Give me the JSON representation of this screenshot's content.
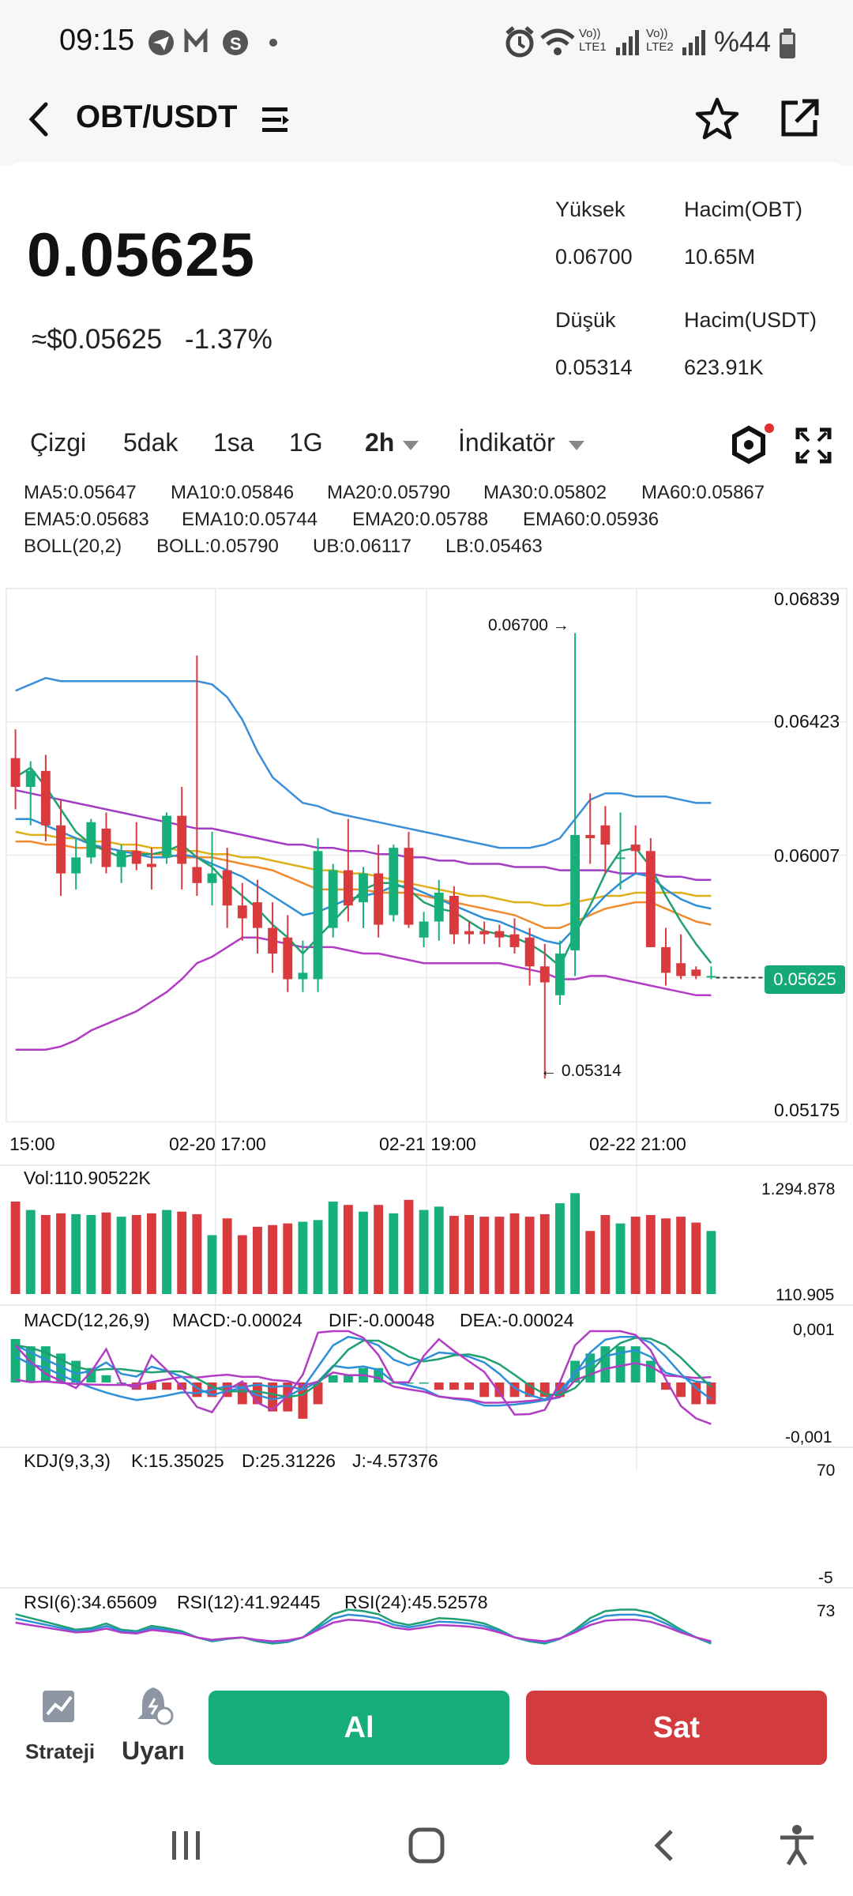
{
  "status": {
    "time": "09:15",
    "battery": "%44",
    "sim1": "LTE1",
    "sim2": "LTE2",
    "volte": "Vo))"
  },
  "header": {
    "pair": "OBT/USDT"
  },
  "ticker": {
    "price": "0.05625",
    "usd": "≈$0.05625",
    "change": "-1.37%",
    "high_label": "Yüksek",
    "high": "0.06700",
    "low_label": "Düşük",
    "low": "0.05314",
    "vol_base_label": "Hacim(OBT)",
    "vol_base": "10.65M",
    "vol_quote_label": "Hacim(USDT)",
    "vol_quote": "623.91K"
  },
  "tabs": {
    "line": "Çizgi",
    "m5": "5dak",
    "h1": "1sa",
    "d1": "1G",
    "h2": "2h",
    "indicator": "İndikatör"
  },
  "indicators": {
    "ma5": "MA5:0.05647",
    "ma10": "MA10:0.05846",
    "ma20": "MA20:0.05790",
    "ma30": "MA30:0.05802",
    "ma60": "MA60:0.05867",
    "ema5": "EMA5:0.05683",
    "ema10": "EMA10:0.05744",
    "ema20": "EMA20:0.05788",
    "ema60": "EMA60:0.05936",
    "boll": "BOLL(20,2)",
    "bollv": "BOLL:0.05790",
    "ub": "UB:0.06117",
    "lb": "LB:0.05463"
  },
  "chart": {
    "yticks": [
      "0.06839",
      "0.06423",
      "0.06007",
      "0.05625",
      "0.05175"
    ],
    "xticks": [
      "15:00",
      "02-20 17:00",
      "02-21 19:00",
      "02-22 21:00"
    ],
    "high_marker": "0.06700 →",
    "low_marker": "← 0.05314",
    "current": "0.05625"
  },
  "chart_data": {
    "type": "candlestick",
    "title": "OBT/USDT 2h",
    "ylim": [
      0.05175,
      0.06839
    ],
    "candles": [
      [
        0.0631,
        0.064,
        0.0615,
        0.0622
      ],
      [
        0.0622,
        0.063,
        0.061,
        0.0627
      ],
      [
        0.0627,
        0.0632,
        0.0605,
        0.061
      ],
      [
        0.061,
        0.0618,
        0.0588,
        0.0595
      ],
      [
        0.0595,
        0.0606,
        0.059,
        0.06
      ],
      [
        0.06,
        0.0612,
        0.0598,
        0.0611
      ],
      [
        0.0609,
        0.0614,
        0.0595,
        0.0597
      ],
      [
        0.0597,
        0.0604,
        0.0592,
        0.0602
      ],
      [
        0.0602,
        0.0611,
        0.0596,
        0.0598
      ],
      [
        0.0598,
        0.0603,
        0.059,
        0.0597
      ],
      [
        0.06,
        0.0614,
        0.0598,
        0.0613
      ],
      [
        0.0613,
        0.0622,
        0.059,
        0.0598
      ],
      [
        0.0597,
        0.0663,
        0.0588,
        0.0592
      ],
      [
        0.0592,
        0.0608,
        0.0585,
        0.0595
      ],
      [
        0.0596,
        0.0603,
        0.0578,
        0.0585
      ],
      [
        0.0585,
        0.0592,
        0.0574,
        0.0581
      ],
      [
        0.0586,
        0.0593,
        0.057,
        0.0578
      ],
      [
        0.0578,
        0.0586,
        0.0564,
        0.057
      ],
      [
        0.0575,
        0.0582,
        0.0558,
        0.0562
      ],
      [
        0.0562,
        0.0574,
        0.0558,
        0.0564
      ],
      [
        0.0562,
        0.0606,
        0.0558,
        0.0602
      ],
      [
        0.0578,
        0.0598,
        0.0575,
        0.0596
      ],
      [
        0.0596,
        0.0612,
        0.058,
        0.0585
      ],
      [
        0.0586,
        0.0597,
        0.0578,
        0.0595
      ],
      [
        0.0595,
        0.0604,
        0.0575,
        0.0579
      ],
      [
        0.0582,
        0.0604,
        0.058,
        0.0603
      ],
      [
        0.0603,
        0.0608,
        0.0578,
        0.0579
      ],
      [
        0.0575,
        0.0583,
        0.0572,
        0.058
      ],
      [
        0.058,
        0.0593,
        0.0574,
        0.0589
      ],
      [
        0.0588,
        0.0591,
        0.0573,
        0.0576
      ],
      [
        0.0577,
        0.058,
        0.0573,
        0.0576
      ],
      [
        0.0577,
        0.058,
        0.0573,
        0.0576
      ],
      [
        0.0577,
        0.0579,
        0.0572,
        0.0575
      ],
      [
        0.0576,
        0.0581,
        0.057,
        0.0572
      ],
      [
        0.0575,
        0.0578,
        0.056,
        0.0566
      ],
      [
        0.0566,
        0.0573,
        0.0531,
        0.0561
      ],
      [
        0.0557,
        0.0574,
        0.0554,
        0.057
      ],
      [
        0.0571,
        0.067,
        0.0563,
        0.0607
      ],
      [
        0.0607,
        0.062,
        0.0598,
        0.0606
      ],
      [
        0.061,
        0.0616,
        0.0595,
        0.0604
      ],
      [
        0.06,
        0.0614,
        0.059,
        0.06
      ],
      [
        0.0604,
        0.061,
        0.0595,
        0.0602
      ],
      [
        0.0602,
        0.0606,
        0.0572,
        0.0572
      ],
      [
        0.0572,
        0.0578,
        0.056,
        0.0564
      ],
      [
        0.0567,
        0.0576,
        0.0562,
        0.0563
      ],
      [
        0.0565,
        0.0566,
        0.0562,
        0.0563
      ],
      [
        0.0563,
        0.0566,
        0.0562,
        0.0563
      ]
    ],
    "boll_upper": [
      0.0652,
      0.0654,
      0.0656,
      0.0655,
      0.0655,
      0.0655,
      0.0655,
      0.0655,
      0.0655,
      0.0655,
      0.0655,
      0.0655,
      0.0655,
      0.0654,
      0.065,
      0.0643,
      0.0633,
      0.0625,
      0.0621,
      0.0617,
      0.0616,
      0.0614,
      0.0613,
      0.0612,
      0.0611,
      0.061,
      0.0609,
      0.0608,
      0.0607,
      0.0606,
      0.0605,
      0.0604,
      0.0603,
      0.0603,
      0.0603,
      0.0604,
      0.0606,
      0.0612,
      0.0618,
      0.062,
      0.062,
      0.0619,
      0.0619,
      0.0619,
      0.0618,
      0.0617,
      0.0617
    ],
    "boll_lower": [
      0.054,
      0.054,
      0.054,
      0.0541,
      0.0543,
      0.0546,
      0.0548,
      0.055,
      0.0552,
      0.0555,
      0.0558,
      0.0562,
      0.0567,
      0.0569,
      0.0572,
      0.0575,
      0.0575,
      0.0574,
      0.0573,
      0.0572,
      0.0572,
      0.0572,
      0.0571,
      0.057,
      0.057,
      0.0569,
      0.0568,
      0.0567,
      0.0567,
      0.0567,
      0.0567,
      0.0567,
      0.0567,
      0.0566,
      0.0565,
      0.0564,
      0.0562,
      0.0562,
      0.0563,
      0.0563,
      0.0562,
      0.0561,
      0.056,
      0.0559,
      0.0558,
      0.0557,
      0.0557
    ],
    "ma60": [
      0.0621,
      0.062,
      0.0619,
      0.0618,
      0.0617,
      0.0616,
      0.0615,
      0.0614,
      0.0613,
      0.0612,
      0.0611,
      0.061,
      0.0609,
      0.0609,
      0.0608,
      0.0607,
      0.0606,
      0.0605,
      0.0604,
      0.0604,
      0.0603,
      0.0603,
      0.0602,
      0.0602,
      0.0601,
      0.0601,
      0.06,
      0.06,
      0.0599,
      0.0599,
      0.0598,
      0.0598,
      0.0598,
      0.0597,
      0.0597,
      0.0597,
      0.0596,
      0.0596,
      0.0596,
      0.0596,
      0.0595,
      0.0595,
      0.0595,
      0.0594,
      0.0594,
      0.0593,
      0.0593
    ],
    "ma30": [
      0.0608,
      0.0607,
      0.0607,
      0.0606,
      0.0606,
      0.0605,
      0.0605,
      0.0604,
      0.0604,
      0.0603,
      0.0603,
      0.0602,
      0.0602,
      0.0601,
      0.0601,
      0.06,
      0.06,
      0.0599,
      0.0598,
      0.0597,
      0.0596,
      0.0596,
      0.0595,
      0.0595,
      0.0594,
      0.0593,
      0.0592,
      0.0591,
      0.059,
      0.0589,
      0.0588,
      0.0588,
      0.0587,
      0.0586,
      0.0586,
      0.0585,
      0.0585,
      0.0586,
      0.0587,
      0.0588,
      0.0588,
      0.0589,
      0.0589,
      0.0589,
      0.0589,
      0.0588,
      0.0588
    ],
    "ma20": [
      0.0605,
      0.0605,
      0.0604,
      0.0604,
      0.0603,
      0.0603,
      0.0603,
      0.0602,
      0.0602,
      0.0601,
      0.0601,
      0.06,
      0.06,
      0.06,
      0.0599,
      0.0598,
      0.0597,
      0.0596,
      0.0594,
      0.0592,
      0.059,
      0.059,
      0.059,
      0.059,
      0.0589,
      0.0589,
      0.0589,
      0.0588,
      0.0587,
      0.0586,
      0.0585,
      0.0584,
      0.0583,
      0.0582,
      0.058,
      0.0578,
      0.0578,
      0.058,
      0.0582,
      0.0584,
      0.0585,
      0.0586,
      0.0586,
      0.0584,
      0.0582,
      0.058,
      0.0579
    ],
    "ma10": [
      0.0612,
      0.0612,
      0.061,
      0.0608,
      0.0606,
      0.0604,
      0.0603,
      0.0602,
      0.0601,
      0.06,
      0.06,
      0.0601,
      0.06,
      0.0598,
      0.0596,
      0.0594,
      0.0591,
      0.0588,
      0.0585,
      0.0582,
      0.0583,
      0.0585,
      0.0587,
      0.0588,
      0.0589,
      0.0591,
      0.0591,
      0.0589,
      0.0587,
      0.0585,
      0.0583,
      0.0581,
      0.058,
      0.0578,
      0.0576,
      0.0574,
      0.0573,
      0.0578,
      0.0583,
      0.0588,
      0.0592,
      0.0595,
      0.0594,
      0.059,
      0.0587,
      0.0585,
      0.0584
    ],
    "ma5": [
      0.0625,
      0.0628,
      0.0622,
      0.0615,
      0.0608,
      0.0604,
      0.0602,
      0.06,
      0.0601,
      0.0601,
      0.0602,
      0.0604,
      0.06,
      0.0597,
      0.0592,
      0.0588,
      0.0584,
      0.0579,
      0.0575,
      0.057,
      0.0575,
      0.058,
      0.0585,
      0.059,
      0.0592,
      0.0592,
      0.059,
      0.0586,
      0.0584,
      0.0583,
      0.058,
      0.0577,
      0.0576,
      0.0575,
      0.0573,
      0.057,
      0.0566,
      0.0576,
      0.0585,
      0.0595,
      0.0602,
      0.0603,
      0.0597,
      0.0588,
      0.058,
      0.0573,
      0.0567
    ],
    "volume": [
      110,
      100,
      94,
      96,
      95,
      94,
      97,
      92,
      94,
      96,
      100,
      98,
      95,
      70,
      90,
      70,
      80,
      82,
      84,
      86,
      88,
      110,
      106,
      98,
      106,
      96,
      112,
      100,
      104,
      93,
      94,
      92,
      92,
      96,
      92,
      95,
      108,
      120,
      75,
      94,
      84,
      92,
      94,
      90,
      92,
      85,
      75
    ],
    "vol_label": "Vol:110.90522K",
    "vol_max": "1.294.878",
    "vol_min": "110.905",
    "macd_hist": [
      0.0006,
      0.0005,
      0.0005,
      0.0004,
      0.0003,
      0.0002,
      0.0001,
      0.0,
      -0.0001,
      -0.0001,
      -0.0001,
      -0.0001,
      -0.0002,
      -0.0002,
      -0.0002,
      -0.0003,
      -0.0003,
      -0.0004,
      -0.0004,
      -0.0005,
      -0.0003,
      0.0001,
      0.0001,
      0.0002,
      0.0002,
      0.0,
      0.0,
      0.0,
      -0.0001,
      -0.0001,
      -0.0001,
      -0.0002,
      -0.0002,
      -0.0002,
      -0.0002,
      -0.0002,
      -0.0002,
      0.0003,
      0.0004,
      0.0005,
      0.0005,
      0.0005,
      0.0003,
      -0.0001,
      -0.0002,
      -0.0003,
      -0.0003
    ],
    "macd_label": "MACD(12,26,9)",
    "macd_v": "MACD:-0.00024",
    "dif": "DIF:-0.00048",
    "dea": "DEA:-0.00024",
    "macd_max": "0,001",
    "macd_min": "-0,001",
    "kdj_label": "KDJ(9,3,3)",
    "kdj_k": "K:15.35025",
    "kdj_d": "D:25.31226",
    "kdj_j": "J:-4.57376",
    "kdj_max": "70",
    "kdj_min": "-5",
    "rsi6": "RSI(6):34.65609",
    "rsi12": "RSI(12):41.92445",
    "rsi24": "RSI(24):45.52578",
    "rsi_max": "73"
  },
  "actions": {
    "strategy": "Strateji",
    "alert": "Uyarı",
    "buy": "Al",
    "sell": "Sat"
  }
}
